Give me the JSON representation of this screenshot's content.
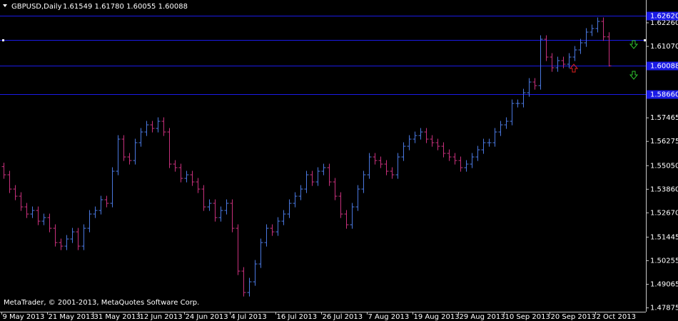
{
  "chart_data": {
    "type": "ohlc",
    "title": "GBPUSD,Daily",
    "subtitle": "1.61549 1.61780 1.60055 1.60088",
    "annotation": "MetaTrader, © 2001-2013, MetaQuotes Software Corp.",
    "up_color": "#4a78e0",
    "down_color": "#c8307c",
    "level_color": "#1a1ae6",
    "categories": [
      "9 May 2013",
      null,
      null,
      null,
      null,
      null,
      null,
      null,
      "21 May 2013",
      null,
      null,
      null,
      null,
      null,
      null,
      null,
      "31 May 2013",
      null,
      null,
      null,
      null,
      null,
      null,
      null,
      "12 Jun 2013",
      null,
      null,
      null,
      null,
      null,
      null,
      null,
      "24 Jun 2013",
      null,
      null,
      null,
      null,
      null,
      null,
      null,
      "4 Jul 2013",
      null,
      null,
      null,
      null,
      null,
      null,
      null,
      "16 Jul 2013",
      null,
      null,
      null,
      null,
      null,
      null,
      null,
      "26 Jul 2013",
      null,
      null,
      null,
      null,
      null,
      null,
      null,
      "7 Aug 2013",
      null,
      null,
      null,
      null,
      null,
      null,
      null,
      "19 Aug 2013",
      null,
      null,
      null,
      null,
      null,
      null,
      null,
      "29 Aug 2013",
      null,
      null,
      null,
      null,
      null,
      null,
      null,
      "10 Sep 2013",
      null,
      null,
      null,
      null,
      null,
      null,
      null,
      "20 Sep 2013",
      null,
      null,
      null,
      null,
      null,
      null,
      null,
      "2 Oct 2013",
      null,
      null
    ],
    "open": [
      1.55,
      1.5459,
      1.5387,
      1.5351,
      1.5297,
      1.5261,
      1.5279,
      1.5225,
      1.5243,
      1.5189,
      1.5117,
      1.5099,
      1.5135,
      1.5171,
      1.5099,
      1.5189,
      1.5261,
      1.5279,
      1.5333,
      1.5315,
      1.5477,
      1.5639,
      1.5549,
      1.5531,
      1.5621,
      1.5675,
      1.5711,
      1.5693,
      1.5729,
      1.5675,
      1.5513,
      1.5495,
      1.5441,
      1.5459,
      1.5423,
      1.5387,
      1.5297,
      1.5315,
      1.5243,
      1.5279,
      1.5315,
      1.5189,
      1.4973,
      1.4865,
      1.4919,
      1.5009,
      1.5117,
      1.5189,
      1.5171,
      1.5225,
      1.5261,
      1.5315,
      1.5351,
      1.5387,
      1.5459,
      1.5423,
      1.5477,
      1.5495,
      1.5423,
      1.5351,
      1.5261,
      1.5207,
      1.5297,
      1.5387,
      1.5459,
      1.5549,
      1.5531,
      1.5513,
      1.5477,
      1.5459,
      1.5549,
      1.5603,
      1.5639,
      1.5657,
      1.5675,
      1.5639,
      1.5621,
      1.5603,
      1.5567,
      1.5549,
      1.5531,
      1.5495,
      1.5513,
      1.5549,
      1.5585,
      1.5621,
      1.5621,
      1.5675,
      1.5711,
      1.5729,
      1.5819,
      1.5819,
      1.5873,
      1.5927,
      1.5909,
      1.6143,
      1.6053,
      1.5999,
      1.6035,
      1.6017,
      1.6053,
      1.6089,
      1.6125,
      1.6179,
      1.6197,
      1.6233,
      1.61549
    ],
    "high": [
      1.552,
      1.5479,
      1.5407,
      1.5371,
      1.5317,
      1.5299,
      1.5299,
      1.5263,
      1.5263,
      1.5209,
      1.5137,
      1.5155,
      1.5191,
      1.5191,
      1.5209,
      1.5281,
      1.5299,
      1.5353,
      1.5353,
      1.5497,
      1.5659,
      1.5659,
      1.5569,
      1.5641,
      1.5695,
      1.5731,
      1.5731,
      1.5749,
      1.5749,
      1.5695,
      1.5533,
      1.5515,
      1.5479,
      1.5479,
      1.5443,
      1.5407,
      1.5335,
      1.5335,
      1.5299,
      1.5335,
      1.5335,
      1.5209,
      1.4993,
      1.4939,
      1.5029,
      1.5137,
      1.5209,
      1.5209,
      1.5245,
      1.5281,
      1.5335,
      1.5371,
      1.5407,
      1.5479,
      1.5479,
      1.5497,
      1.5515,
      1.5515,
      1.5443,
      1.5371,
      1.5281,
      1.5317,
      1.5407,
      1.5479,
      1.5569,
      1.5569,
      1.5551,
      1.5533,
      1.5497,
      1.5569,
      1.5623,
      1.5659,
      1.5677,
      1.5695,
      1.5695,
      1.5659,
      1.5641,
      1.5623,
      1.5587,
      1.5569,
      1.5551,
      1.5533,
      1.5569,
      1.5605,
      1.5641,
      1.5641,
      1.5695,
      1.5731,
      1.5749,
      1.5839,
      1.5839,
      1.5893,
      1.5947,
      1.5947,
      1.6163,
      1.6163,
      1.6073,
      1.6055,
      1.6055,
      1.6073,
      1.6109,
      1.6145,
      1.6199,
      1.6217,
      1.6253,
      1.6253,
      1.6178
    ],
    "low": [
      1.5439,
      1.5367,
      1.5331,
      1.5277,
      1.5241,
      1.5241,
      1.5205,
      1.5205,
      1.5169,
      1.5097,
      1.5079,
      1.5079,
      1.5115,
      1.5079,
      1.5079,
      1.5169,
      1.5241,
      1.5259,
      1.5295,
      1.5295,
      1.5457,
      1.5529,
      1.5511,
      1.5511,
      1.5601,
      1.5655,
      1.5673,
      1.5673,
      1.5655,
      1.5493,
      1.5475,
      1.5421,
      1.5421,
      1.5403,
      1.5367,
      1.5277,
      1.5277,
      1.5223,
      1.5223,
      1.5259,
      1.5169,
      1.4953,
      1.4845,
      1.4845,
      1.4899,
      1.4989,
      1.5097,
      1.5151,
      1.5151,
      1.5205,
      1.5241,
      1.5295,
      1.5331,
      1.5367,
      1.5403,
      1.5403,
      1.5457,
      1.5403,
      1.5331,
      1.5241,
      1.5187,
      1.5187,
      1.5277,
      1.5367,
      1.5439,
      1.5511,
      1.5493,
      1.5457,
      1.5439,
      1.5439,
      1.5529,
      1.5583,
      1.5619,
      1.5637,
      1.5619,
      1.5601,
      1.5583,
      1.5547,
      1.5529,
      1.5511,
      1.5475,
      1.5475,
      1.5493,
      1.5529,
      1.5565,
      1.5601,
      1.5601,
      1.5655,
      1.5691,
      1.5709,
      1.5799,
      1.5799,
      1.5853,
      1.5889,
      1.5889,
      1.6033,
      1.5979,
      1.5979,
      1.5997,
      1.5997,
      1.6033,
      1.6069,
      1.6105,
      1.6159,
      1.6177,
      1.6135,
      1.60055
    ],
    "close": [
      1.5459,
      1.5387,
      1.5351,
      1.5297,
      1.5261,
      1.5279,
      1.5225,
      1.5243,
      1.5189,
      1.5117,
      1.5099,
      1.5135,
      1.5171,
      1.5099,
      1.5189,
      1.5261,
      1.5279,
      1.5333,
      1.5315,
      1.5477,
      1.5639,
      1.5549,
      1.5531,
      1.5621,
      1.5675,
      1.5711,
      1.5693,
      1.5729,
      1.5675,
      1.5513,
      1.5495,
      1.5441,
      1.5459,
      1.5423,
      1.5387,
      1.5297,
      1.5315,
      1.5243,
      1.5279,
      1.5315,
      1.5189,
      1.4973,
      1.4865,
      1.4919,
      1.5009,
      1.5117,
      1.5189,
      1.5171,
      1.5225,
      1.5261,
      1.5315,
      1.5351,
      1.5387,
      1.5459,
      1.5423,
      1.5477,
      1.5495,
      1.5423,
      1.5351,
      1.5261,
      1.5207,
      1.5297,
      1.5387,
      1.5459,
      1.5549,
      1.5531,
      1.5513,
      1.5477,
      1.5459,
      1.5549,
      1.5603,
      1.5639,
      1.5657,
      1.5675,
      1.5639,
      1.5621,
      1.5603,
      1.5567,
      1.5549,
      1.5531,
      1.5495,
      1.5513,
      1.5549,
      1.5585,
      1.5621,
      1.5621,
      1.5675,
      1.5711,
      1.5729,
      1.5819,
      1.5819,
      1.5873,
      1.5927,
      1.5909,
      1.6143,
      1.6053,
      1.5999,
      1.6035,
      1.6017,
      1.6053,
      1.6089,
      1.6125,
      1.6179,
      1.6197,
      1.6233,
      1.6155,
      1.60088
    ],
    "ylim": [
      1.4768,
      1.6341
    ],
    "yticks": [
      {
        "value": 1.6226,
        "label": "1.62260"
      },
      {
        "value": 1.6107,
        "label": "1.61070"
      },
      {
        "value": 1.57465,
        "label": "1.57465"
      },
      {
        "value": 1.56275,
        "label": "1.56275"
      },
      {
        "value": 1.5505,
        "label": "1.55050"
      },
      {
        "value": 1.5386,
        "label": "1.53860"
      },
      {
        "value": 1.5267,
        "label": "1.52670"
      },
      {
        "value": 1.51445,
        "label": "1.51445"
      },
      {
        "value": 1.50255,
        "label": "1.50255"
      },
      {
        "value": 1.49065,
        "label": "1.49065"
      },
      {
        "value": 1.47875,
        "label": "1.47875"
      }
    ],
    "levels": [
      {
        "value": 1.6262,
        "label": "1.62620"
      },
      {
        "value": 1.6139
      },
      {
        "value": 1.60088,
        "label": "1.60088"
      },
      {
        "value": 1.5866,
        "label": "1.58660"
      }
    ],
    "grid": false
  }
}
